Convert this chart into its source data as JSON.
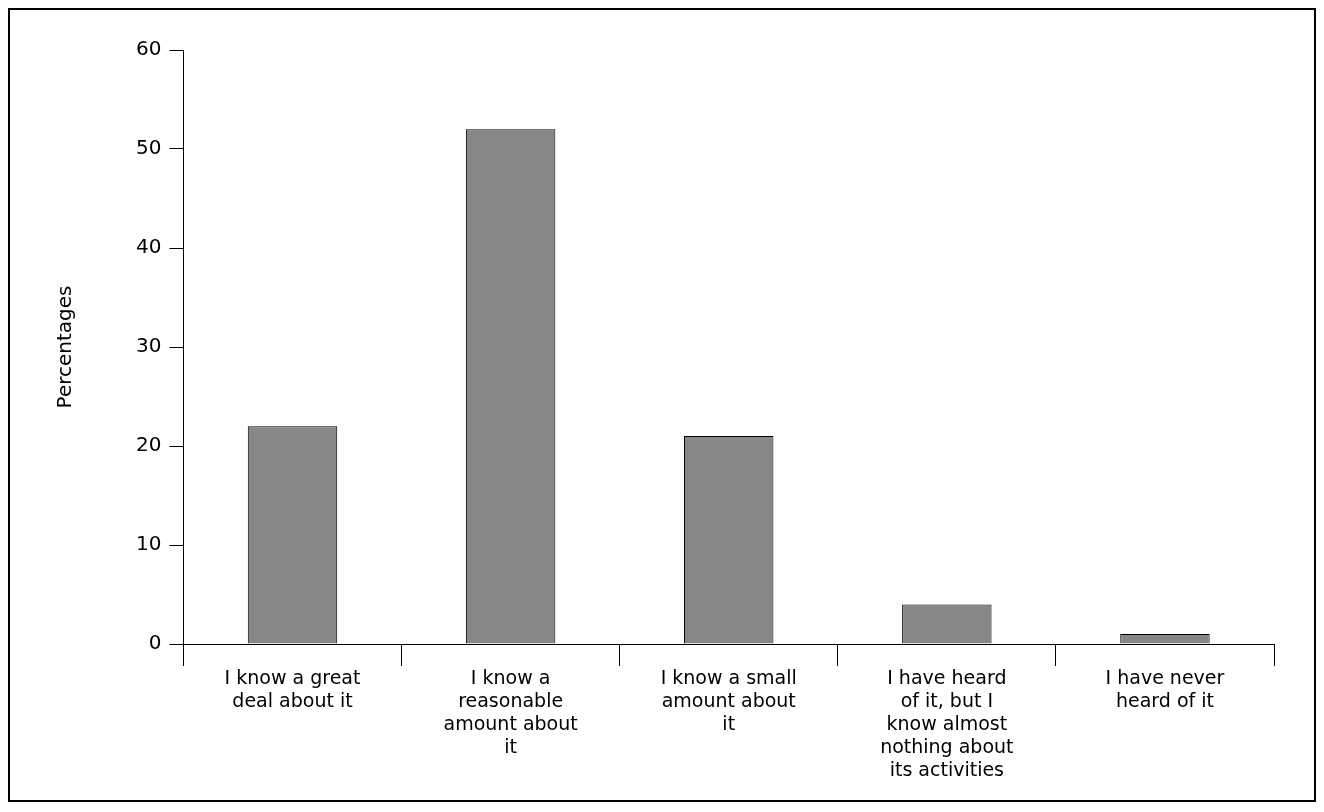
{
  "chart_data": {
    "type": "bar",
    "ylabel": "Percentages",
    "categories": [
      "I know a great deal about it",
      "I know a reasonable amount about it",
      "I know a small amount about it",
      "I have heard of it, but I know almost nothing about its activities",
      "I have never heard of it"
    ],
    "values": [
      22,
      52,
      21,
      4,
      1
    ],
    "color": "#878787",
    "ylim": [
      0,
      60
    ],
    "yticks": [
      0,
      10,
      20,
      30,
      40,
      50,
      60
    ],
    "grid": false
  }
}
